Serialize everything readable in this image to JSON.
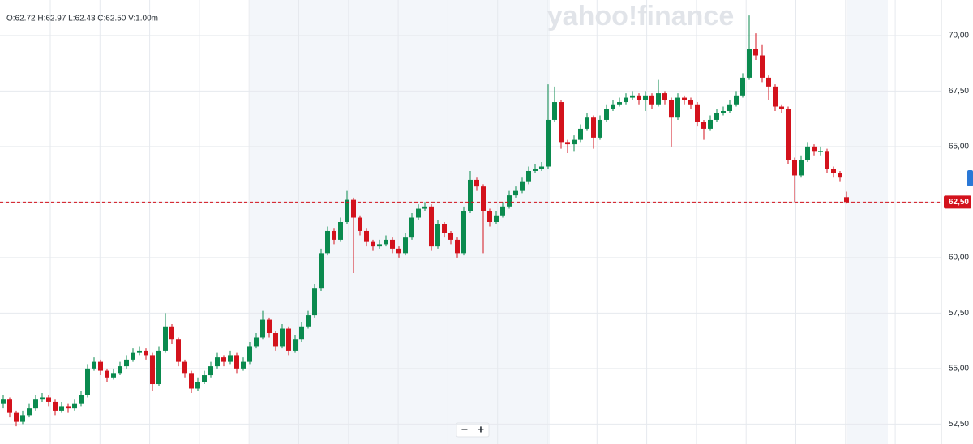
{
  "chart_data": {
    "type": "candlestick",
    "readout": "O:62.72  H:62.97  L:62.43  C:62.50  V:1.00m",
    "watermark": "yahoo!finance",
    "zoom_out": "−",
    "zoom_in": "+",
    "up_color": "#0a8a4e",
    "down_color": "#d3121c",
    "ylim": [
      51.6,
      71.6
    ],
    "yticks": [
      {
        "value": 52.5,
        "label": "52,50"
      },
      {
        "value": 55,
        "label": "55,00"
      },
      {
        "value": 57.5,
        "label": "57,50"
      },
      {
        "value": 60,
        "label": "60,00"
      },
      {
        "value": 62.5,
        "label": "62,50"
      },
      {
        "value": 65,
        "label": "65,00"
      },
      {
        "value": 67.5,
        "label": "67,50"
      },
      {
        "value": 70,
        "label": "70,00"
      }
    ],
    "grid": true,
    "last_price": {
      "value": 62.5,
      "label": "62,50"
    },
    "ohlc": [
      [
        53.4,
        53.8,
        53.2,
        53.6
      ],
      [
        53.6,
        53.7,
        52.8,
        53.0
      ],
      [
        53.0,
        53.1,
        52.4,
        52.6
      ],
      [
        52.6,
        53.1,
        52.5,
        52.9
      ],
      [
        52.9,
        53.4,
        52.8,
        53.2
      ],
      [
        53.2,
        53.8,
        53.1,
        53.6
      ],
      [
        53.6,
        53.9,
        53.5,
        53.7
      ],
      [
        53.7,
        53.8,
        53.3,
        53.5
      ],
      [
        53.5,
        53.6,
        52.9,
        53.1
      ],
      [
        53.1,
        53.5,
        53.0,
        53.3
      ],
      [
        53.3,
        53.4,
        53.0,
        53.2
      ],
      [
        53.2,
        53.6,
        53.1,
        53.4
      ],
      [
        53.4,
        54.0,
        53.3,
        53.8
      ],
      [
        53.8,
        55.2,
        53.7,
        55.0
      ],
      [
        55.0,
        55.5,
        54.9,
        55.3
      ],
      [
        55.3,
        55.4,
        54.7,
        54.9
      ],
      [
        54.9,
        55.0,
        54.4,
        54.6
      ],
      [
        54.6,
        55.0,
        54.5,
        54.8
      ],
      [
        54.8,
        55.3,
        54.7,
        55.1
      ],
      [
        55.1,
        55.6,
        55.0,
        55.4
      ],
      [
        55.4,
        55.9,
        55.3,
        55.7
      ],
      [
        55.7,
        56.0,
        55.6,
        55.8
      ],
      [
        55.8,
        55.9,
        55.4,
        55.6
      ],
      [
        55.6,
        55.7,
        54.0,
        54.3
      ],
      [
        54.3,
        56.0,
        54.2,
        55.8
      ],
      [
        55.8,
        57.5,
        55.7,
        56.9
      ],
      [
        56.9,
        57.0,
        56.1,
        56.3
      ],
      [
        56.3,
        56.4,
        55.1,
        55.3
      ],
      [
        55.3,
        55.4,
        54.6,
        54.8
      ],
      [
        54.8,
        54.9,
        53.9,
        54.1
      ],
      [
        54.1,
        54.6,
        54.0,
        54.4
      ],
      [
        54.4,
        54.9,
        54.3,
        54.7
      ],
      [
        54.7,
        55.3,
        54.6,
        55.1
      ],
      [
        55.1,
        55.7,
        55.0,
        55.5
      ],
      [
        55.5,
        55.6,
        55.1,
        55.3
      ],
      [
        55.3,
        55.8,
        55.2,
        55.6
      ],
      [
        55.6,
        55.7,
        54.8,
        55.0
      ],
      [
        55.0,
        55.5,
        54.9,
        55.3
      ],
      [
        55.3,
        56.2,
        55.2,
        56.0
      ],
      [
        56.0,
        56.6,
        55.9,
        56.4
      ],
      [
        56.4,
        57.6,
        56.3,
        57.2
      ],
      [
        57.2,
        57.3,
        56.4,
        56.6
      ],
      [
        56.6,
        56.7,
        55.8,
        56.0
      ],
      [
        56.0,
        57.0,
        55.9,
        56.8
      ],
      [
        56.8,
        56.9,
        55.6,
        55.8
      ],
      [
        55.8,
        56.5,
        55.7,
        56.3
      ],
      [
        56.3,
        57.1,
        56.2,
        56.9
      ],
      [
        56.9,
        57.6,
        56.8,
        57.4
      ],
      [
        57.4,
        58.8,
        57.3,
        58.6
      ],
      [
        58.6,
        60.4,
        58.5,
        60.2
      ],
      [
        60.2,
        61.4,
        60.1,
        61.2
      ],
      [
        61.2,
        61.3,
        60.6,
        60.8
      ],
      [
        60.8,
        61.8,
        60.7,
        61.6
      ],
      [
        61.6,
        63.0,
        61.5,
        62.6
      ],
      [
        62.6,
        62.7,
        59.3,
        61.8
      ],
      [
        61.8,
        61.9,
        61.0,
        61.2
      ],
      [
        61.2,
        61.3,
        60.5,
        60.7
      ],
      [
        60.7,
        60.8,
        60.3,
        60.5
      ],
      [
        60.5,
        60.8,
        60.4,
        60.6
      ],
      [
        60.6,
        61.0,
        60.5,
        60.8
      ],
      [
        60.8,
        60.9,
        60.2,
        60.4
      ],
      [
        60.4,
        60.5,
        60.0,
        60.2
      ],
      [
        60.2,
        61.1,
        60.1,
        60.9
      ],
      [
        60.9,
        62.0,
        60.8,
        61.8
      ],
      [
        61.8,
        62.4,
        61.7,
        62.2
      ],
      [
        62.2,
        62.5,
        62.1,
        62.3
      ],
      [
        62.3,
        62.4,
        60.3,
        60.5
      ],
      [
        60.5,
        61.7,
        60.4,
        61.5
      ],
      [
        61.5,
        61.6,
        60.9,
        61.1
      ],
      [
        61.1,
        61.2,
        60.6,
        60.8
      ],
      [
        60.8,
        60.9,
        60.0,
        60.2
      ],
      [
        60.2,
        62.3,
        60.1,
        62.1
      ],
      [
        62.1,
        63.9,
        62.0,
        63.5
      ],
      [
        63.5,
        63.6,
        63.0,
        63.2
      ],
      [
        63.2,
        63.3,
        60.2,
        62.1
      ],
      [
        62.1,
        62.2,
        61.4,
        61.6
      ],
      [
        61.6,
        62.1,
        61.5,
        61.9
      ],
      [
        61.9,
        62.5,
        61.8,
        62.3
      ],
      [
        62.3,
        63.0,
        62.2,
        62.8
      ],
      [
        62.8,
        63.2,
        62.7,
        63.0
      ],
      [
        63.0,
        63.6,
        62.9,
        63.4
      ],
      [
        63.4,
        64.1,
        63.3,
        63.9
      ],
      [
        63.9,
        64.2,
        63.8,
        64.0
      ],
      [
        64.0,
        64.3,
        63.9,
        64.1
      ],
      [
        64.1,
        67.8,
        64.0,
        66.2
      ],
      [
        66.2,
        67.7,
        66.1,
        67.0
      ],
      [
        67.0,
        67.1,
        64.9,
        65.2
      ],
      [
        65.2,
        65.3,
        64.7,
        65.1
      ],
      [
        65.1,
        65.5,
        64.8,
        65.3
      ],
      [
        65.3,
        66.0,
        65.2,
        65.8
      ],
      [
        65.8,
        66.5,
        65.7,
        66.3
      ],
      [
        66.3,
        66.4,
        64.9,
        65.4
      ],
      [
        65.4,
        66.4,
        65.3,
        66.2
      ],
      [
        66.2,
        66.9,
        66.1,
        66.7
      ],
      [
        66.7,
        67.1,
        66.6,
        66.9
      ],
      [
        66.9,
        67.2,
        66.8,
        67.0
      ],
      [
        67.0,
        67.4,
        66.9,
        67.2
      ],
      [
        67.2,
        67.5,
        67.1,
        67.3
      ],
      [
        67.3,
        67.4,
        66.9,
        67.1
      ],
      [
        67.1,
        67.5,
        66.6,
        67.3
      ],
      [
        67.3,
        67.4,
        66.7,
        66.9
      ],
      [
        66.9,
        68.0,
        66.8,
        67.4
      ],
      [
        67.4,
        67.5,
        66.9,
        67.1
      ],
      [
        67.1,
        67.2,
        65.0,
        66.3
      ],
      [
        66.3,
        67.4,
        66.2,
        67.2
      ],
      [
        67.2,
        67.3,
        66.9,
        67.1
      ],
      [
        67.1,
        67.2,
        66.7,
        66.9
      ],
      [
        66.9,
        67.0,
        65.9,
        66.1
      ],
      [
        66.1,
        66.2,
        65.3,
        65.8
      ],
      [
        65.8,
        66.4,
        65.7,
        66.2
      ],
      [
        66.2,
        66.7,
        66.1,
        66.5
      ],
      [
        66.5,
        66.8,
        66.4,
        66.6
      ],
      [
        66.6,
        67.1,
        66.5,
        66.9
      ],
      [
        66.9,
        67.5,
        66.8,
        67.3
      ],
      [
        67.3,
        68.3,
        67.2,
        68.1
      ],
      [
        68.1,
        70.9,
        68.0,
        69.4
      ],
      [
        69.4,
        70.1,
        68.9,
        69.1
      ],
      [
        69.1,
        69.6,
        67.9,
        68.1
      ],
      [
        68.1,
        68.2,
        67.1,
        67.7
      ],
      [
        67.7,
        67.8,
        66.6,
        66.8
      ],
      [
        66.8,
        66.9,
        66.5,
        66.7
      ],
      [
        66.7,
        66.8,
        64.2,
        64.4
      ],
      [
        64.4,
        64.5,
        62.5,
        63.7
      ],
      [
        63.7,
        64.6,
        63.6,
        64.4
      ],
      [
        64.4,
        65.2,
        64.3,
        65.0
      ],
      [
        65.0,
        65.1,
        64.6,
        64.8
      ],
      [
        64.8,
        65.0,
        64.6,
        64.8
      ],
      [
        64.8,
        64.9,
        63.8,
        64.0
      ],
      [
        64.0,
        64.1,
        63.6,
        63.8
      ],
      [
        63.8,
        63.9,
        63.4,
        63.6
      ],
      [
        62.72,
        62.97,
        62.43,
        62.5
      ]
    ]
  }
}
